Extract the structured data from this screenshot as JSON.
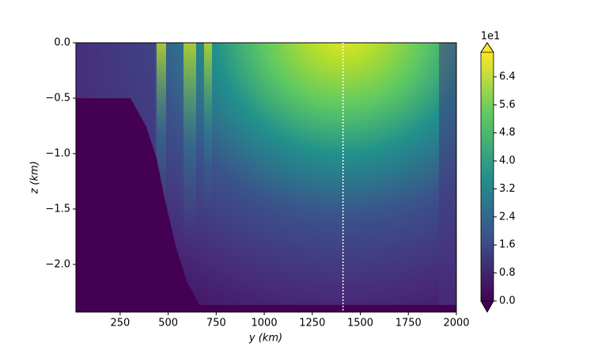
{
  "chart_data": {
    "type": "contourf",
    "xlabel": "y (km)",
    "ylabel": "z (km)",
    "xlim": [
      20,
      2000
    ],
    "xticks": [
      250,
      500,
      750,
      1000,
      1250,
      1500,
      1750,
      2000
    ],
    "ylim": [
      -2.43,
      0
    ],
    "yticks": [
      {
        "value": 0,
        "label": "0.0"
      },
      {
        "value": -0.5,
        "label": "−0.5"
      },
      {
        "value": -1.0,
        "label": "−1.0"
      },
      {
        "value": -1.5,
        "label": "−1.5"
      },
      {
        "value": -2.0,
        "label": "−2.0"
      }
    ],
    "vline_x": 1410,
    "vline_color": "#ffffff",
    "colorbar": {
      "lim": [
        0,
        7.1
      ],
      "offset_label": "1e1",
      "colormap": "viridis",
      "ticks": [
        {
          "value": 0,
          "label": "0.0"
        },
        0.8,
        1.6,
        2.4,
        3.2,
        {
          "value": 4.0,
          "label": "4.0"
        },
        4.8,
        5.6,
        6.4
      ]
    }
  }
}
